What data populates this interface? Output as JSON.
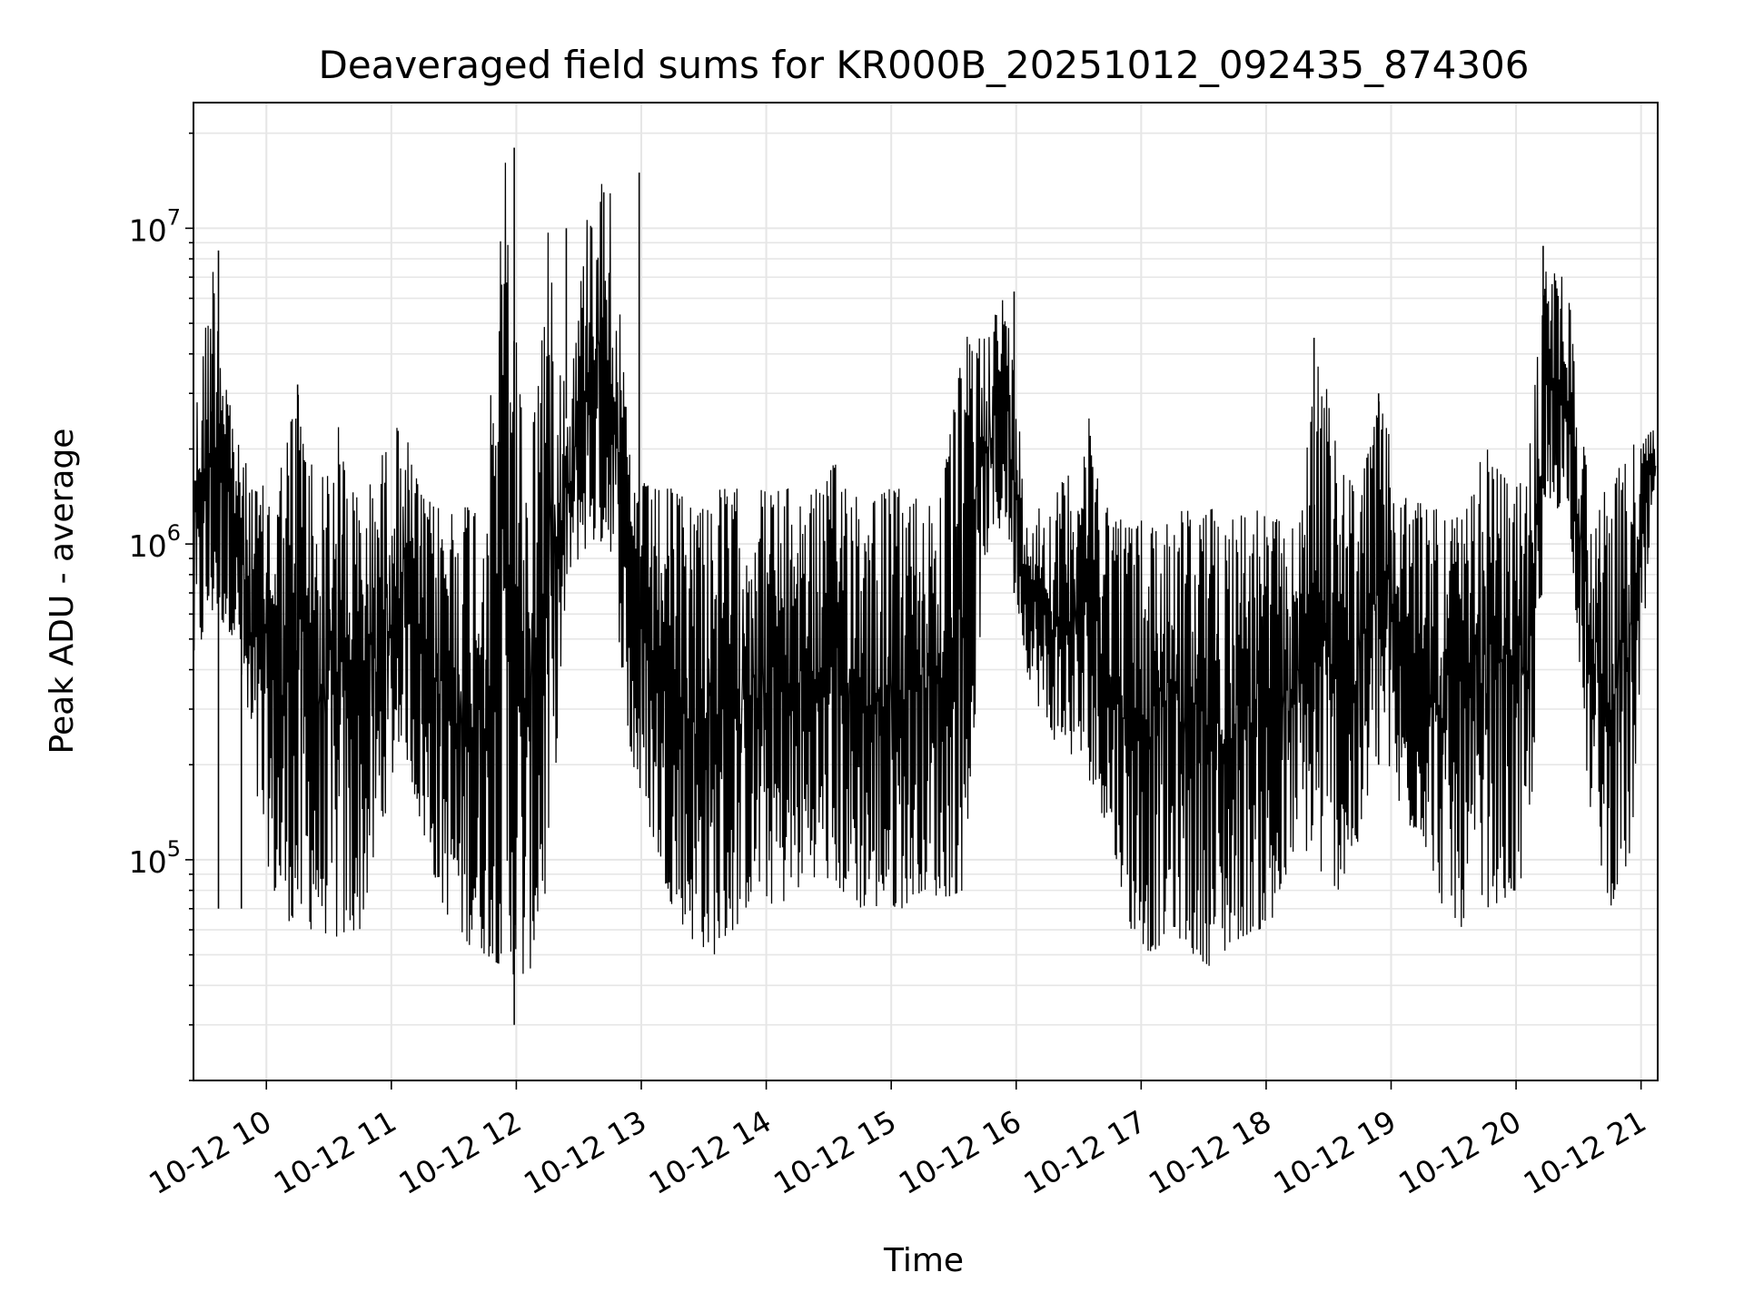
{
  "chart_data": {
    "type": "line",
    "title": "Deaveraged field sums for KR000B_20251012_092435_874306",
    "xlabel": "Time",
    "ylabel": "Peak ADU - average",
    "x_axis": {
      "kind": "time",
      "range": [
        "2025-10-12T09:25",
        "2025-10-12T21:08"
      ],
      "tick_labels": [
        "10-12 10",
        "10-12 11",
        "10-12 12",
        "10-12 13",
        "10-12 14",
        "10-12 15",
        "10-12 16",
        "10-12 17",
        "10-12 18",
        "10-12 19",
        "10-12 20",
        "10-12 21"
      ]
    },
    "y_axis": {
      "scale": "log",
      "range": [
        20000,
        25000000
      ],
      "major_ticks": [
        {
          "value": 100000,
          "base": "10",
          "exp": "5"
        },
        {
          "value": 1000000,
          "base": "10",
          "exp": "6"
        },
        {
          "value": 10000000,
          "base": "10",
          "exp": "7"
        }
      ]
    },
    "grid": true,
    "legend": "none",
    "line_color": "#000000",
    "grid_color": "#e6e6e6",
    "series": [
      {
        "x": [
          "2025-10-12T09:25",
          "2025-10-12T09:35",
          "2025-10-12T09:45",
          "2025-10-12T09:55",
          "2025-10-12T10:05",
          "2025-10-12T10:15",
          "2025-10-12T10:25",
          "2025-10-12T10:35",
          "2025-10-12T10:45",
          "2025-10-12T10:55",
          "2025-10-12T11:05",
          "2025-10-12T11:15",
          "2025-10-12T11:25",
          "2025-10-12T11:35",
          "2025-10-12T11:45",
          "2025-10-12T11:55",
          "2025-10-12T12:05",
          "2025-10-12T12:15",
          "2025-10-12T12:25",
          "2025-10-12T12:35",
          "2025-10-12T12:45",
          "2025-10-12T12:55",
          "2025-10-12T13:05",
          "2025-10-12T13:15",
          "2025-10-12T13:25",
          "2025-10-12T13:35",
          "2025-10-12T13:45",
          "2025-10-12T13:55",
          "2025-10-12T14:05",
          "2025-10-12T14:15",
          "2025-10-12T14:25",
          "2025-10-12T14:35",
          "2025-10-12T14:45",
          "2025-10-12T14:55",
          "2025-10-12T15:05",
          "2025-10-12T15:15",
          "2025-10-12T15:25",
          "2025-10-12T15:35",
          "2025-10-12T15:45",
          "2025-10-12T15:55",
          "2025-10-12T16:05",
          "2025-10-12T16:15",
          "2025-10-12T16:25",
          "2025-10-12T16:35",
          "2025-10-12T16:45",
          "2025-10-12T16:55",
          "2025-10-12T17:05",
          "2025-10-12T17:15",
          "2025-10-12T17:25",
          "2025-10-12T17:35",
          "2025-10-12T17:45",
          "2025-10-12T17:55",
          "2025-10-12T18:05",
          "2025-10-12T18:15",
          "2025-10-12T18:25",
          "2025-10-12T18:35",
          "2025-10-12T18:45",
          "2025-10-12T18:55",
          "2025-10-12T19:05",
          "2025-10-12T19:15",
          "2025-10-12T19:25",
          "2025-10-12T19:35",
          "2025-10-12T19:45",
          "2025-10-12T19:55",
          "2025-10-12T20:05",
          "2025-10-12T20:15",
          "2025-10-12T20:25",
          "2025-10-12T20:35",
          "2025-10-12T20:45",
          "2025-10-12T20:55",
          "2025-10-12T21:05"
        ],
        "min": [
          400000,
          600000,
          500000,
          150000,
          70000,
          60000,
          60000,
          55000,
          60000,
          120000,
          250000,
          120000,
          70000,
          55000,
          50000,
          45000,
          40000,
          80000,
          800000,
          1000000,
          1000000,
          200000,
          120000,
          70000,
          55000,
          50000,
          60000,
          80000,
          70000,
          80000,
          90000,
          80000,
          70000,
          70000,
          70000,
          80000,
          75000,
          80000,
          900000,
          1200000,
          400000,
          250000,
          220000,
          180000,
          120000,
          60000,
          50000,
          60000,
          50000,
          45000,
          55000,
          60000,
          60000,
          120000,
          90000,
          80000,
          110000,
          250000,
          130000,
          120000,
          70000,
          60000,
          70000,
          75000,
          80000,
          1200000,
          1400000,
          150000,
          70000,
          100000,
          1200000
        ],
        "max": [
          2400000,
          8500000,
          2200000,
          1500000,
          1600000,
          3200000,
          1500000,
          2400000,
          1300000,
          1900000,
          2500000,
          1400000,
          1300000,
          1400000,
          1500000,
          18000000,
          1500000,
          10000000,
          2700000,
          13000000,
          15000000,
          1700000,
          1500000,
          1500000,
          1400000,
          1500000,
          1500000,
          1500000,
          1500000,
          1500000,
          1500000,
          1900000,
          1500000,
          1500000,
          1500000,
          1400000,
          1600000,
          4500000,
          4800000,
          6300000,
          1400000,
          1300000,
          1700000,
          2500000,
          1300000,
          1200000,
          1200000,
          1300000,
          1300000,
          1300000,
          1300000,
          1300000,
          1200000,
          1100000,
          4500000,
          1800000,
          1500000,
          3000000,
          1400000,
          1400000,
          1300000,
          1200000,
          2100000,
          1600000,
          1600000,
          8800000,
          6500000,
          1500000,
          1500000,
          2100000,
          2300000
        ],
        "spikes": [
          {
            "x": "2025-10-12T09:37",
            "low": 70000,
            "high": 8500000
          },
          {
            "x": "2025-10-12T09:34",
            "low": 900000,
            "high": 4000000
          },
          {
            "x": "2025-10-12T10:15",
            "low": 100000,
            "high": 3200000
          },
          {
            "x": "2025-10-12T11:59",
            "low": 30000,
            "high": 18000000
          },
          {
            "x": "2025-10-12T12:24",
            "low": 2500000,
            "high": 10000000
          },
          {
            "x": "2025-10-12T12:42",
            "low": 1500000,
            "high": 13000000
          },
          {
            "x": "2025-10-12T12:59",
            "low": 400000,
            "high": 15000000
          },
          {
            "x": "2025-10-12T15:59",
            "low": 700000,
            "high": 6300000
          },
          {
            "x": "2025-10-12T18:23",
            "low": 300000,
            "high": 4500000
          },
          {
            "x": "2025-10-12T18:54",
            "low": 200000,
            "high": 3000000
          },
          {
            "x": "2025-10-12T20:13",
            "low": 1500000,
            "high": 8800000
          },
          {
            "x": "2025-10-12T09:48",
            "low": 70000,
            "high": 1200000
          }
        ]
      }
    ]
  }
}
